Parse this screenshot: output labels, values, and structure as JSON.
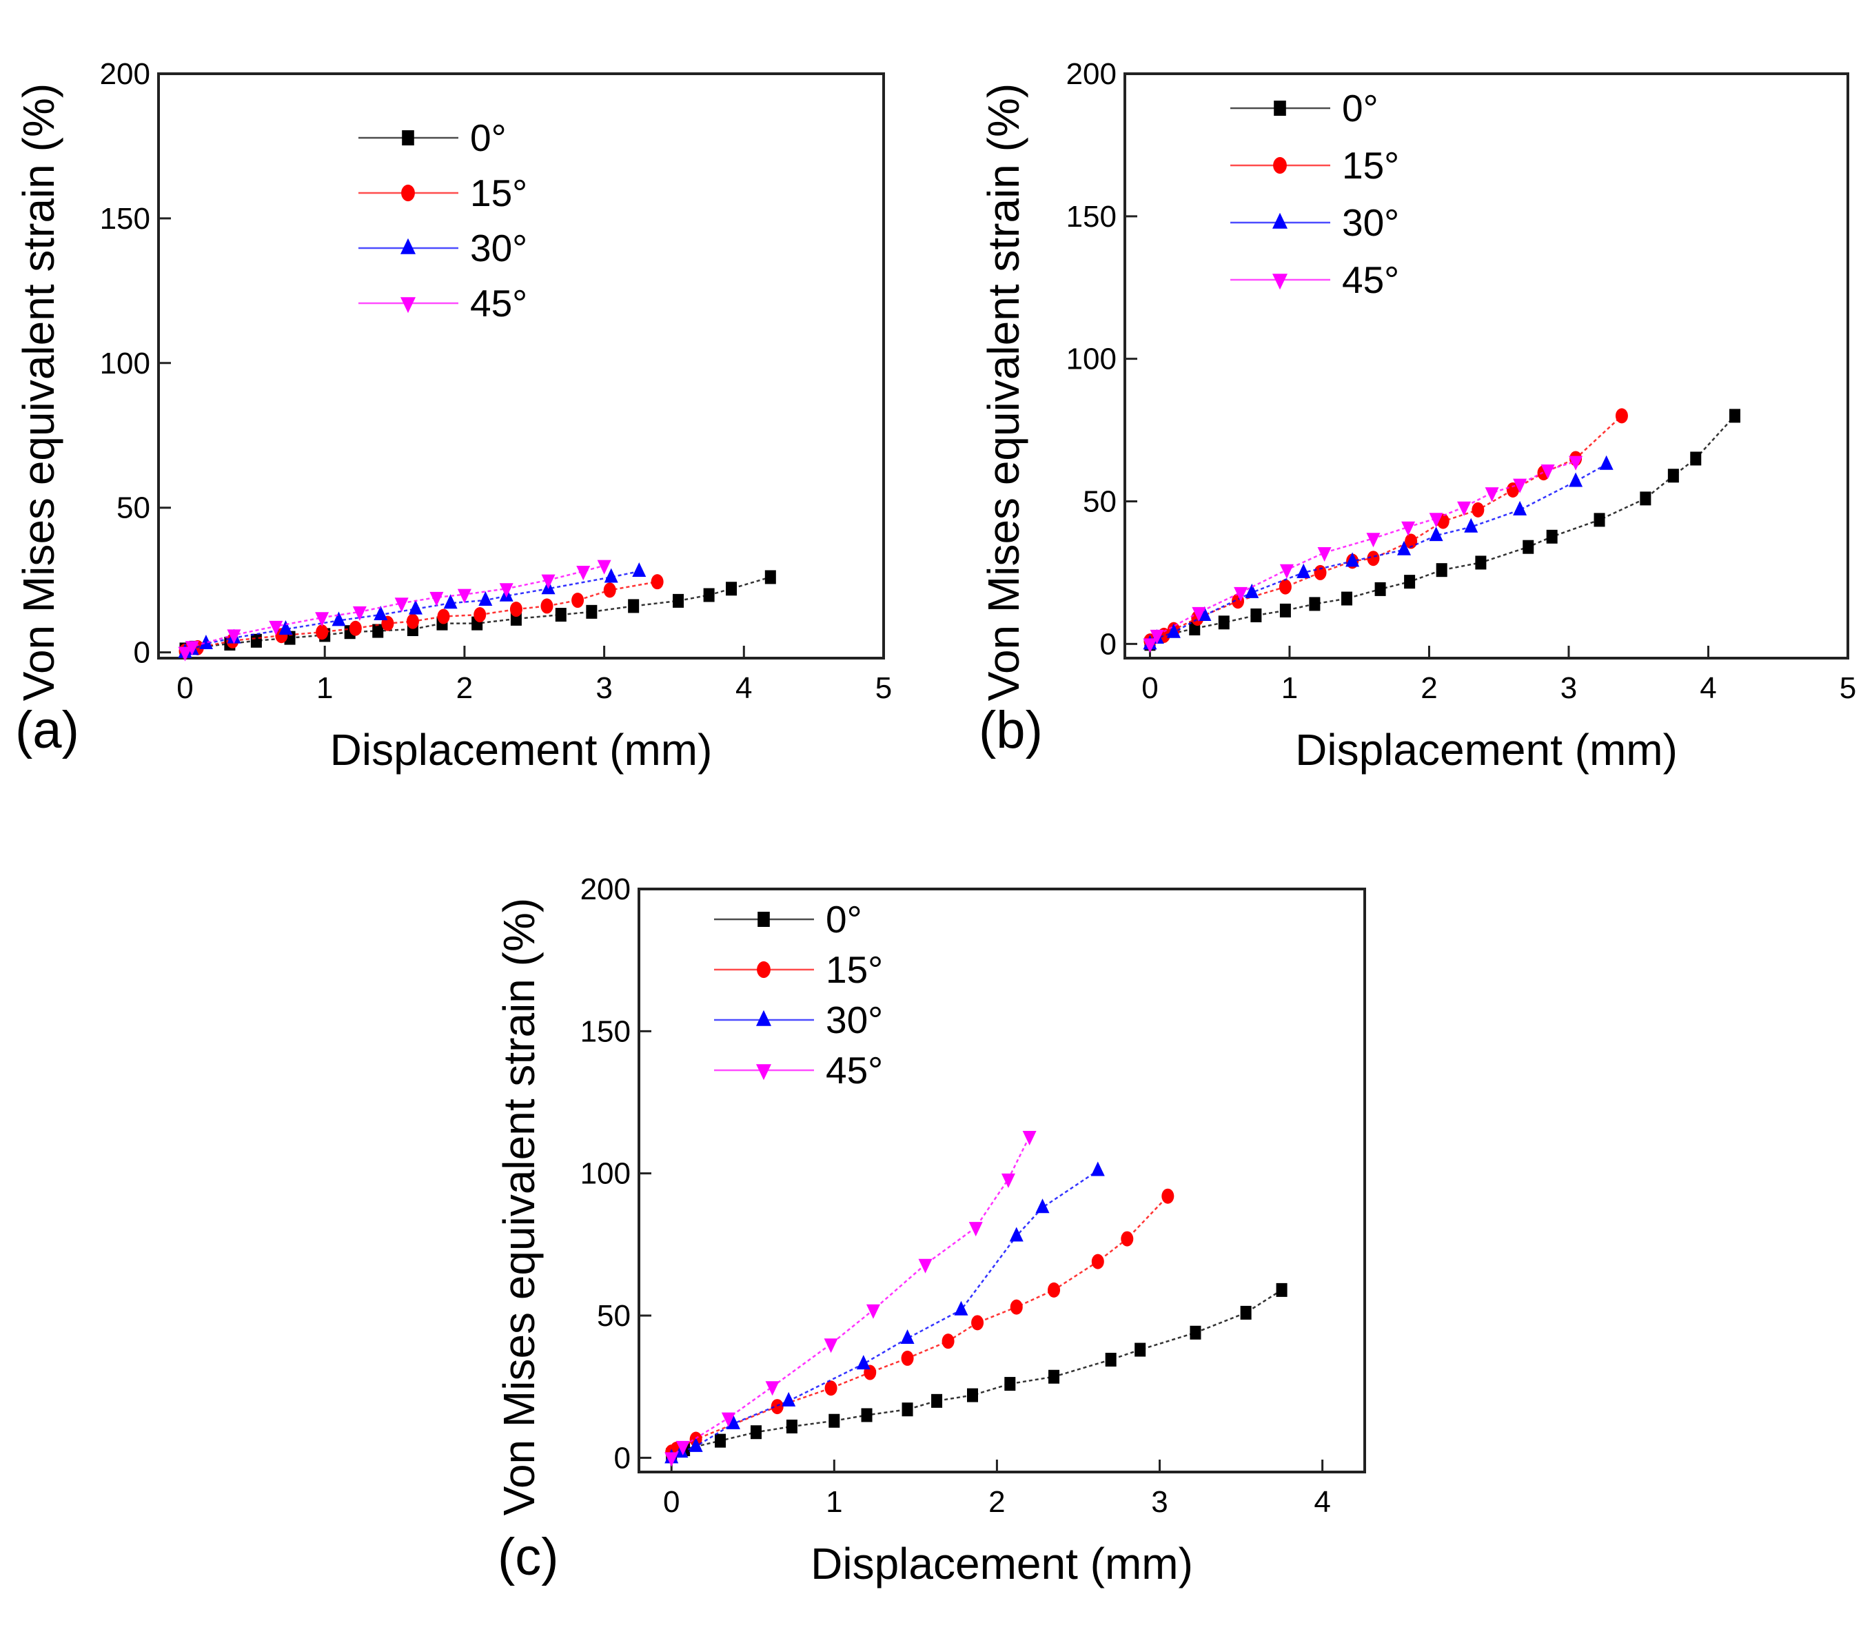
{
  "chart_data": [
    {
      "panel": "(a)",
      "type": "line",
      "xlabel": "Displacement (mm)",
      "ylabel": "Von Mises equivalent strain (%)",
      "xlim": [
        -0.19,
        5
      ],
      "ylim": [
        -2,
        200
      ],
      "xticks": [
        0,
        1,
        2,
        3,
        4,
        5
      ],
      "yticks": [
        0,
        50,
        100,
        150,
        200
      ],
      "legend_position": "upper-center",
      "series": [
        {
          "name": "0°",
          "color": "#000000",
          "marker": "square",
          "x": [
            0,
            0.07,
            0.32,
            0.51,
            0.75,
            1.0,
            1.18,
            1.38,
            1.63,
            1.84,
            2.09,
            2.37,
            2.69,
            2.91,
            3.21,
            3.53,
            3.75,
            3.91,
            4.19
          ],
          "y": [
            1,
            1.6,
            3,
            4,
            5,
            6,
            7,
            7.4,
            8,
            10,
            10,
            11.6,
            13,
            14,
            16,
            17.8,
            19.8,
            22,
            26
          ]
        },
        {
          "name": "15°",
          "color": "#ff0000",
          "marker": "circle",
          "x": [
            0,
            0.09,
            0.34,
            0.69,
            0.98,
            1.22,
            1.45,
            1.63,
            1.85,
            2.11,
            2.37,
            2.59,
            2.81,
            3.04,
            3.38
          ],
          "y": [
            0.4,
            1.6,
            4,
            5.8,
            7,
            8.3,
            10,
            10.7,
            12.4,
            13,
            14.9,
            16,
            18,
            21.5,
            24.4
          ]
        },
        {
          "name": "30°",
          "color": "#0000ff",
          "marker": "triangle-up",
          "x": [
            0,
            0.05,
            0.15,
            0.35,
            0.72,
            1.1,
            1.4,
            1.65,
            1.9,
            2.15,
            2.3,
            2.6,
            3.05,
            3.25
          ],
          "y": [
            0,
            1,
            3,
            5,
            8,
            11,
            13,
            15,
            17,
            18,
            19.5,
            22,
            26,
            28
          ]
        },
        {
          "name": "45°",
          "color": "#ff00ff",
          "marker": "triangle-down",
          "x": [
            0,
            0.05,
            0.35,
            0.65,
            0.98,
            1.25,
            1.55,
            1.8,
            2.0,
            2.3,
            2.6,
            2.85,
            3.0
          ],
          "y": [
            0,
            2,
            6,
            9,
            12,
            14,
            17,
            19,
            20,
            22,
            25,
            28,
            30
          ]
        }
      ]
    },
    {
      "panel": "(b)",
      "type": "line",
      "xlabel": "Displacement (mm)",
      "ylabel": "Von Mises equivalent strain (%)",
      "xlim": [
        -0.18,
        5
      ],
      "ylim": [
        -5,
        200
      ],
      "xticks": [
        0,
        1,
        2,
        3,
        4,
        5
      ],
      "yticks": [
        0,
        50,
        100,
        150,
        200
      ],
      "legend_position": "upper-left",
      "series": [
        {
          "name": "0°",
          "color": "#000000",
          "marker": "square",
          "x": [
            0,
            0.06,
            0.32,
            0.53,
            0.76,
            0.97,
            1.18,
            1.41,
            1.65,
            1.86,
            2.09,
            2.37,
            2.71,
            2.88,
            3.22,
            3.55,
            3.75,
            3.91,
            4.19
          ],
          "y": [
            0,
            2.5,
            5.4,
            7.5,
            10,
            11.7,
            14,
            15.9,
            19.2,
            21.8,
            25.9,
            28.5,
            34,
            37.6,
            43.5,
            51,
            59,
            65,
            80
          ]
        },
        {
          "name": "15°",
          "color": "#ff0000",
          "marker": "circle",
          "x": [
            0,
            0.1,
            0.17,
            0.34,
            0.63,
            0.97,
            1.22,
            1.45,
            1.6,
            1.87,
            2.1,
            2.35,
            2.6,
            2.82,
            3.05,
            3.38
          ],
          "y": [
            1,
            3,
            5,
            9,
            15,
            20,
            25,
            29,
            30,
            36,
            43,
            47,
            54,
            60,
            65,
            80
          ]
        },
        {
          "name": "30°",
          "color": "#0000ff",
          "marker": "triangle-up",
          "x": [
            0,
            0.05,
            0.17,
            0.39,
            0.73,
            1.1,
            1.45,
            1.82,
            2.05,
            2.3,
            2.65,
            3.05,
            3.27
          ],
          "y": [
            0,
            2,
            4,
            10,
            18,
            25,
            29,
            33,
            38,
            41,
            47,
            57,
            63
          ]
        },
        {
          "name": "45°",
          "color": "#ff00ff",
          "marker": "triangle-down",
          "x": [
            0,
            0.05,
            0.35,
            0.65,
            0.98,
            1.25,
            1.6,
            1.85,
            2.05,
            2.25,
            2.45,
            2.65,
            2.85,
            3.05
          ],
          "y": [
            0,
            3,
            11,
            18,
            26,
            32,
            37,
            41,
            44,
            48,
            53,
            56,
            61,
            64
          ]
        }
      ]
    },
    {
      "panel": "(c)",
      "type": "line",
      "xlabel": "Displacement (mm)",
      "ylabel": "Von Mises equivalent strain (%)",
      "xlim": [
        -0.2,
        4.26
      ],
      "ylim": [
        -5,
        200
      ],
      "xticks": [
        0,
        1,
        2,
        3,
        4
      ],
      "yticks": [
        0,
        50,
        100,
        150,
        200
      ],
      "legend_position": "upper-left",
      "series": [
        {
          "name": "0°",
          "color": "#000000",
          "marker": "square",
          "x": [
            0,
            0.08,
            0.3,
            0.52,
            0.74,
            1.0,
            1.2,
            1.45,
            1.63,
            1.85,
            2.08,
            2.35,
            2.7,
            2.88,
            3.22,
            3.53,
            3.75
          ],
          "y": [
            1,
            3,
            6,
            9,
            11,
            13,
            15,
            17,
            20,
            22,
            26,
            28.5,
            34.5,
            38,
            44,
            51,
            59
          ]
        },
        {
          "name": "15°",
          "color": "#ff0000",
          "marker": "circle",
          "x": [
            0,
            0.03,
            0.15,
            0.65,
            0.98,
            1.22,
            1.45,
            1.7,
            1.88,
            2.12,
            2.35,
            2.62,
            2.8,
            3.05
          ],
          "y": [
            2,
            3,
            6.5,
            18,
            24.5,
            30,
            35,
            41,
            47.5,
            53,
            59,
            69,
            77,
            92
          ]
        },
        {
          "name": "30°",
          "color": "#0000ff",
          "marker": "triangle-up",
          "x": [
            0,
            0.06,
            0.15,
            0.38,
            0.72,
            1.18,
            1.45,
            1.78,
            2.12,
            2.28,
            2.62
          ],
          "y": [
            0,
            2,
            4,
            12,
            20,
            33,
            42,
            52,
            78,
            88,
            101
          ]
        },
        {
          "name": "45°",
          "color": "#ff00ff",
          "marker": "triangle-down",
          "x": [
            0,
            0.07,
            0.35,
            0.62,
            0.98,
            1.24,
            1.56,
            1.87,
            2.07,
            2.2
          ],
          "y": [
            0,
            4,
            14,
            25,
            40,
            52,
            68,
            81,
            98,
            113
          ]
        }
      ]
    }
  ]
}
